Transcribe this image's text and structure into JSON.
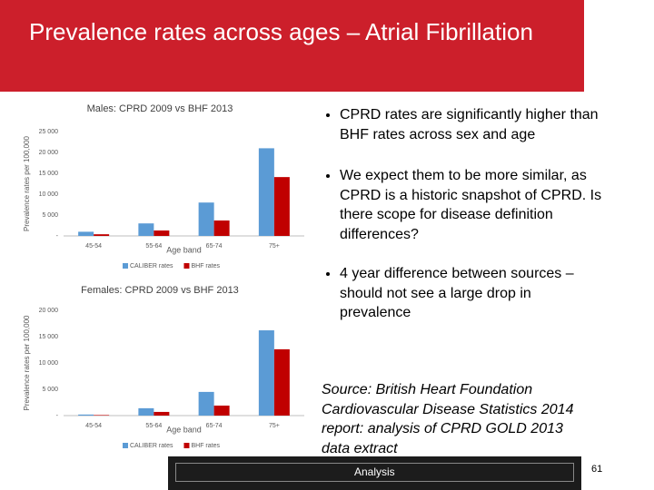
{
  "title": "Prevalence rates across ages – Atrial Fibrillation",
  "bullets": [
    "CPRD rates are significantly higher than BHF rates across sex and age",
    "We expect them to be more similar, as CPRD is a historic snapshot of CPRD. Is there scope for disease definition differences?",
    "4 year difference between sources – should not see a large drop in prevalence"
  ],
  "source": "Source: British Heart Foundation Cardiovascular Disease Statistics 2014 report: analysis of CPRD GOLD 2013 data extract",
  "footer": "Analysis",
  "page_number": "61",
  "chart_data": [
    {
      "type": "bar",
      "title": "Males: CPRD 2009 vs BHF 2013",
      "x_label": "Age band",
      "y_label": "Prevalence rates per 100,000",
      "categories": [
        "45-54",
        "55-64",
        "65-74",
        "75+"
      ],
      "series": [
        {
          "name": "CALIBER rates",
          "color": "#5b9bd5",
          "values": [
            1000,
            3000,
            8000,
            21000
          ]
        },
        {
          "name": "BHF rates",
          "color": "#c00000",
          "values": [
            400,
            1300,
            3700,
            14100
          ]
        }
      ],
      "ylim": [
        0,
        25000
      ],
      "yticks": [
        {
          "value": 0,
          "label": "-"
        },
        {
          "value": 5000,
          "label": "5 000"
        },
        {
          "value": 10000,
          "label": "10 000"
        },
        {
          "value": 15000,
          "label": "15 000"
        },
        {
          "value": 20000,
          "label": "20 000"
        },
        {
          "value": 25000,
          "label": "25 000"
        }
      ],
      "grid": false,
      "legend": "bottom"
    },
    {
      "type": "bar",
      "title": "Females: CPRD 2009 vs BHF 2013",
      "x_label": "Age band",
      "y_label": "Prevalence rates per 100,000",
      "categories": [
        "45-54",
        "55-64",
        "65-74",
        "75+"
      ],
      "series": [
        {
          "name": "CALIBER rates",
          "color": "#5b9bd5",
          "values": [
            200,
            1400,
            4500,
            16200
          ]
        },
        {
          "name": "BHF rates",
          "color": "#c00000",
          "values": [
            100,
            700,
            1900,
            12600
          ]
        }
      ],
      "ylim": [
        0,
        20000
      ],
      "yticks": [
        {
          "value": 0,
          "label": "-"
        },
        {
          "value": 5000,
          "label": "5 000"
        },
        {
          "value": 10000,
          "label": "10 000"
        },
        {
          "value": 15000,
          "label": "15 000"
        },
        {
          "value": 20000,
          "label": "20 000"
        }
      ],
      "grid": false,
      "legend": "bottom"
    }
  ]
}
